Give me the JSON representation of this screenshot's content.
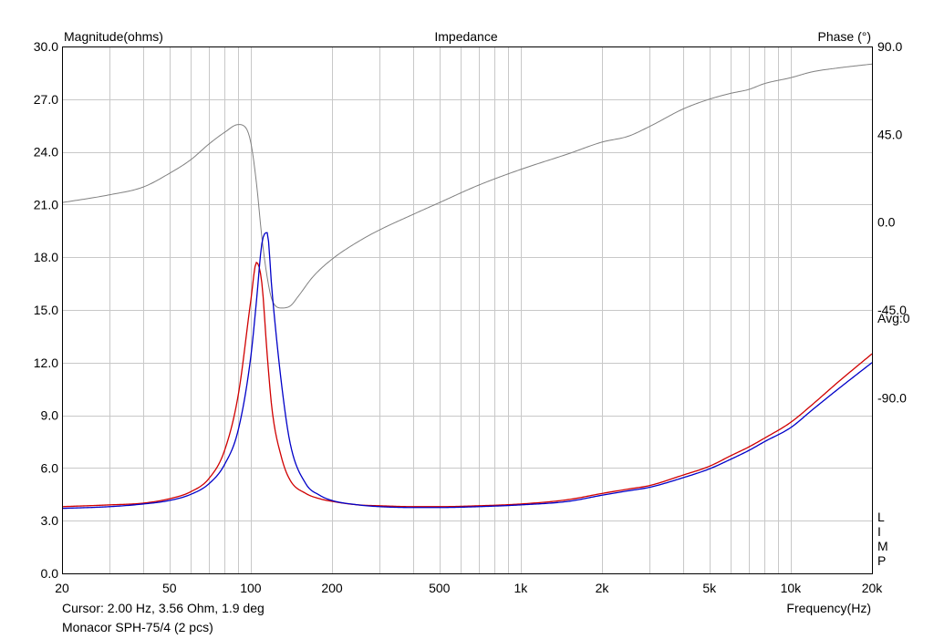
{
  "chart_data": {
    "type": "line",
    "title": "Impedance",
    "left_axis": {
      "label": "Magnitude(ohms)",
      "range": [
        0,
        30
      ],
      "ticks": [
        "0.0",
        "3.0",
        "6.0",
        "9.0",
        "12.0",
        "15.0",
        "18.0",
        "21.0",
        "24.0",
        "27.0",
        "30.0"
      ]
    },
    "right_axis": {
      "label": "Phase (°)",
      "range": [
        -180,
        90
      ],
      "ticks": [
        {
          "value": 90,
          "label": "90.0"
        },
        {
          "value": 45,
          "label": "45.0"
        },
        {
          "value": 0,
          "label": "0.0"
        },
        {
          "value": -45,
          "label": "-45.0"
        },
        {
          "value": -90,
          "label": "-90.0"
        }
      ]
    },
    "x_axis": {
      "label": "Frequency(Hz)",
      "scale": "log",
      "range": [
        20,
        20000
      ],
      "ticks": [
        {
          "value": 20,
          "label": "20"
        },
        {
          "value": 50,
          "label": "50"
        },
        {
          "value": 100,
          "label": "100"
        },
        {
          "value": 200,
          "label": "200"
        },
        {
          "value": 500,
          "label": "500"
        },
        {
          "value": 1000,
          "label": "1k"
        },
        {
          "value": 2000,
          "label": "2k"
        },
        {
          "value": 5000,
          "label": "5k"
        },
        {
          "value": 10000,
          "label": "10k"
        },
        {
          "value": 20000,
          "label": "20k"
        }
      ]
    },
    "grid": true,
    "avg_label": "Avg:0",
    "side_letters": [
      "L",
      "I",
      "M",
      "P"
    ],
    "series": [
      {
        "color": "#d00000",
        "axis": "left",
        "x": [
          20,
          30,
          40,
          50,
          60,
          70,
          80,
          90,
          100,
          105,
          110,
          115,
          120,
          130,
          140,
          160,
          180,
          200,
          250,
          300,
          400,
          500,
          700,
          1000,
          1500,
          2000,
          2500,
          3000,
          4000,
          5000,
          6000,
          7000,
          8000,
          10000,
          12000,
          15000,
          20000
        ],
        "y": [
          3.8,
          3.9,
          4.0,
          4.25,
          4.65,
          5.4,
          7.0,
          10.2,
          15.5,
          17.7,
          16.5,
          12.5,
          9.3,
          6.6,
          5.3,
          4.55,
          4.25,
          4.1,
          3.9,
          3.85,
          3.8,
          3.8,
          3.85,
          3.95,
          4.2,
          4.55,
          4.8,
          5.0,
          5.6,
          6.1,
          6.7,
          7.2,
          7.7,
          8.6,
          9.6,
          10.9,
          12.5
        ]
      },
      {
        "color": "#0000c8",
        "axis": "left",
        "x": [
          20,
          30,
          40,
          50,
          60,
          70,
          80,
          90,
          100,
          105,
          110,
          115,
          120,
          130,
          140,
          160,
          180,
          200,
          250,
          300,
          400,
          500,
          700,
          1000,
          1500,
          2000,
          2500,
          3000,
          4000,
          5000,
          6000,
          7000,
          8000,
          10000,
          12000,
          15000,
          20000
        ],
        "y": [
          3.7,
          3.8,
          3.95,
          4.15,
          4.5,
          5.1,
          6.2,
          8.2,
          12.3,
          15.5,
          18.8,
          19.4,
          16.0,
          10.8,
          7.4,
          5.1,
          4.45,
          4.15,
          3.9,
          3.8,
          3.75,
          3.75,
          3.8,
          3.9,
          4.1,
          4.45,
          4.7,
          4.9,
          5.45,
          5.95,
          6.5,
          7.0,
          7.5,
          8.3,
          9.3,
          10.5,
          12.0
        ]
      },
      {
        "color": "#808080",
        "axis": "right",
        "x": [
          20,
          30,
          40,
          50,
          60,
          70,
          80,
          90,
          95,
          100,
          105,
          110,
          115,
          120,
          130,
          140,
          150,
          170,
          200,
          250,
          300,
          400,
          500,
          700,
          1000,
          1500,
          2000,
          2500,
          3000,
          4000,
          5000,
          6000,
          7000,
          8000,
          10000,
          12000,
          15000,
          20000
        ],
        "y": [
          10,
          14,
          18,
          25,
          32,
          40,
          46,
          50,
          49,
          41,
          20,
          -8,
          -28,
          -40,
          -44,
          -43,
          -38,
          -28,
          -19,
          -10,
          -4,
          4,
          10,
          19,
          27,
          35,
          41,
          44,
          49,
          58,
          63,
          66,
          68,
          71,
          74,
          77,
          79,
          81
        ]
      }
    ],
    "cursor_text": "Cursor: 2.00 Hz, 3.56 Ohm, 1.9 deg",
    "legend_text": "Monacor SPH-75/4 (2 pcs)"
  }
}
